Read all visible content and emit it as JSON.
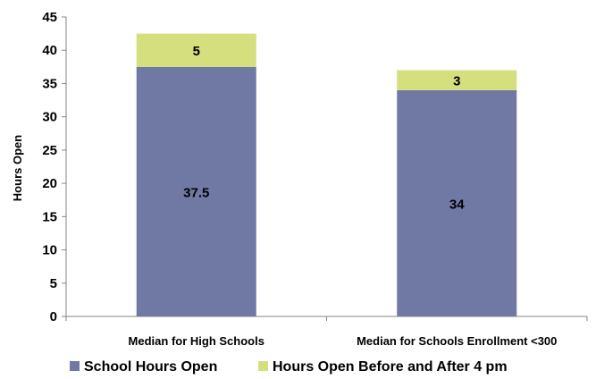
{
  "chart_data": {
    "type": "bar",
    "stacked": true,
    "categories": [
      "Median for High Schools",
      "Median for Schools Enrollment <300"
    ],
    "series": [
      {
        "name": "School Hours Open",
        "values": [
          37.5,
          34
        ],
        "color": "#7079a3"
      },
      {
        "name": "Hours Open Before and After 4 pm",
        "values": [
          5,
          3
        ],
        "color": "#d5df7e"
      }
    ],
    "data_labels": [
      [
        "37.5",
        "34"
      ],
      [
        "5",
        "3"
      ]
    ],
    "title": "",
    "xlabel": "",
    "ylabel": "Hours Open",
    "ylim": [
      0,
      45
    ],
    "yticks": [
      0,
      5,
      10,
      15,
      20,
      25,
      30,
      35,
      40,
      45
    ],
    "grid": false,
    "legend_position": "bottom"
  }
}
